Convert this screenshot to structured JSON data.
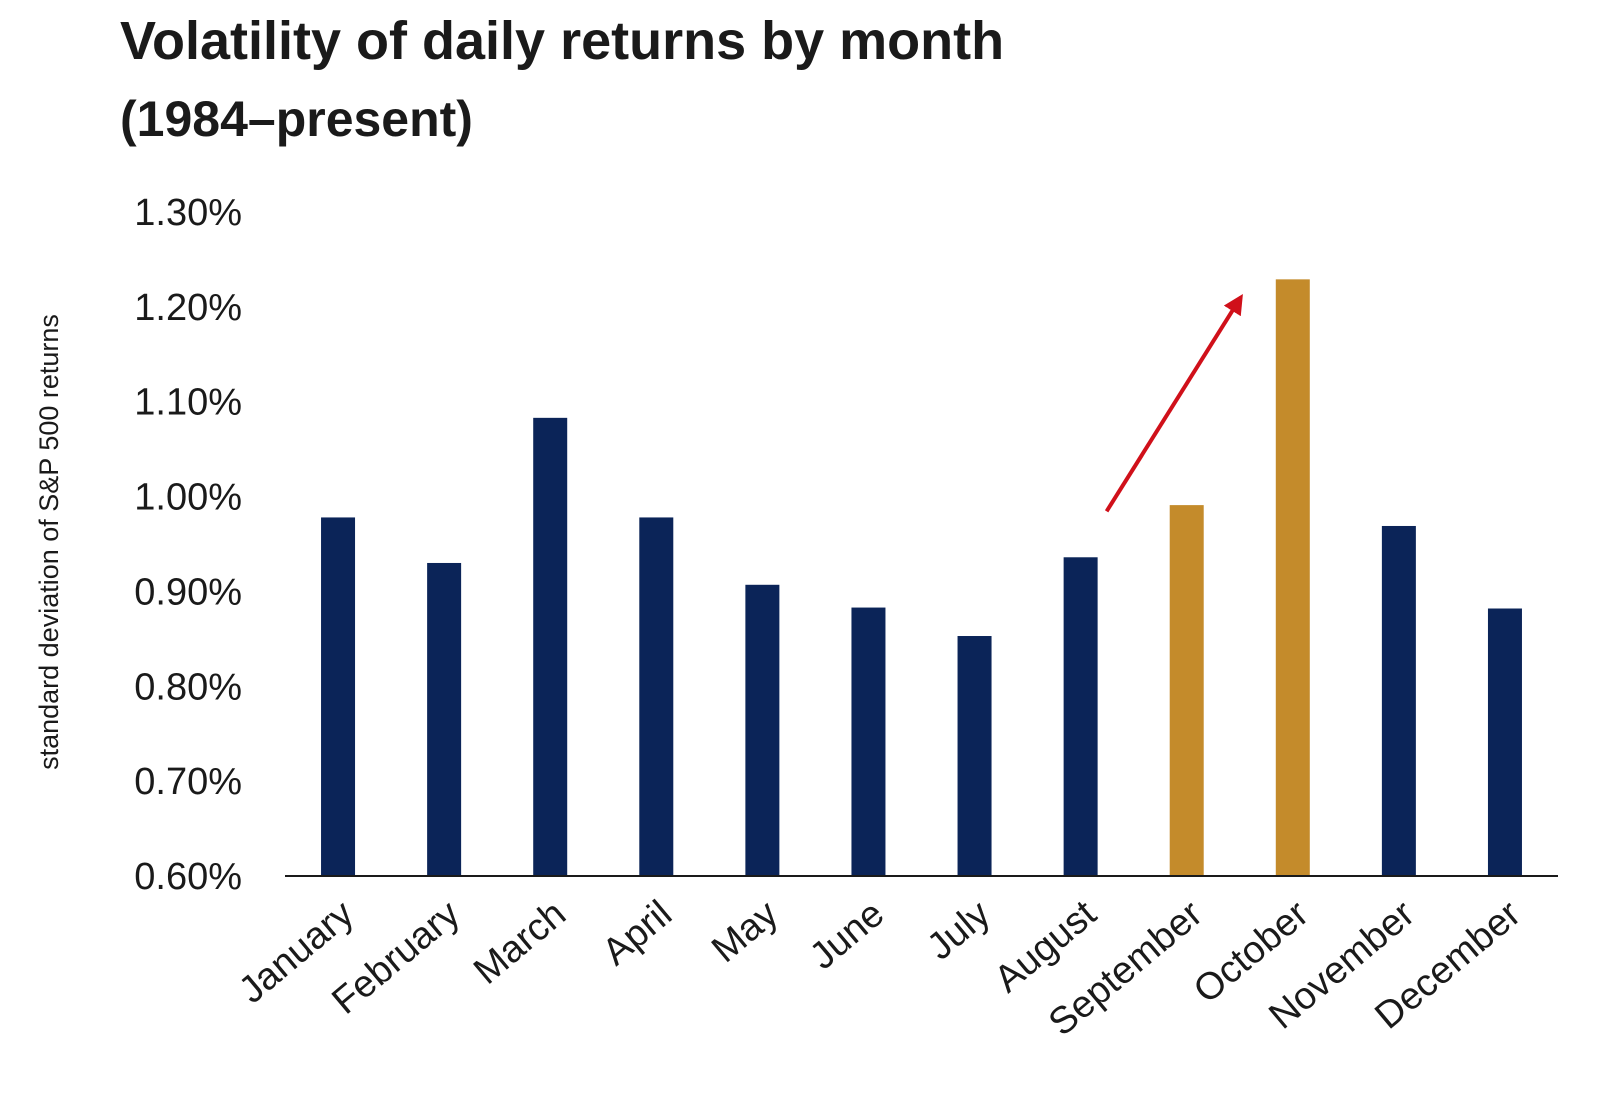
{
  "chart_data": {
    "type": "bar",
    "title": "Volatility of daily returns by month",
    "subtitle": "(1984–present)",
    "ylabel": "standard deviation of S&P 500 returns",
    "xlabel": "",
    "categories": [
      "January",
      "February",
      "March",
      "April",
      "May",
      "June",
      "July",
      "August",
      "September",
      "October",
      "November",
      "December"
    ],
    "values": [
      0.978,
      0.93,
      1.083,
      0.978,
      0.907,
      0.883,
      0.853,
      0.936,
      0.991,
      1.229,
      0.969,
      0.882
    ],
    "ylim": [
      0.6,
      1.3
    ],
    "yticks": [
      0.6,
      0.7,
      0.8,
      0.9,
      1.0,
      1.1,
      1.2,
      1.3
    ],
    "ytick_labels": [
      "0.60%",
      "0.70%",
      "0.80%",
      "0.90%",
      "1.00%",
      "1.10%",
      "1.20%",
      "1.30%"
    ],
    "grid": false,
    "colors": {
      "default": "#0b2458",
      "highlight": "#c48b2b",
      "arrow": "#d0101a",
      "axis": "#1a1a1a"
    },
    "highlighted_categories": [
      "September",
      "October"
    ],
    "annotation": {
      "type": "arrow",
      "from_category": "August",
      "to_category": "October"
    }
  }
}
